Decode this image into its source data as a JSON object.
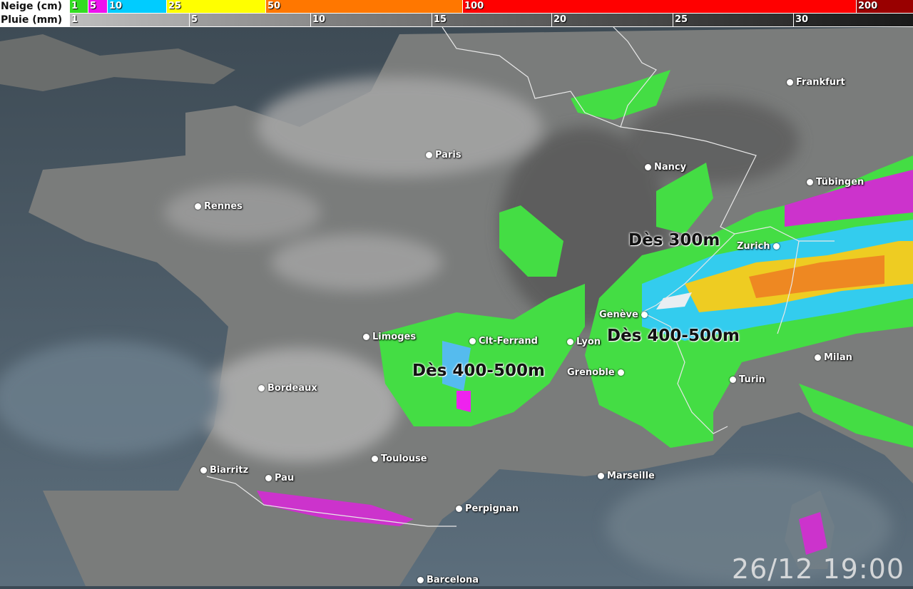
{
  "legend": {
    "snow": {
      "title": "Neige (cm)",
      "steps": [
        {
          "label": "1",
          "color": "#33dd22"
        },
        {
          "label": "5",
          "color": "#ee11ee"
        },
        {
          "label": "10",
          "color": "#00ccff"
        },
        {
          "label": "25",
          "color": "#ffff00"
        },
        {
          "label": "50",
          "color": "#ff7700"
        },
        {
          "label": "100",
          "color": "#ff0000"
        },
        {
          "label": "200",
          "color": "#990000"
        }
      ]
    },
    "rain": {
      "title": "Pluie (mm)",
      "steps": [
        {
          "label": "1",
          "color": "#b8b8b8"
        },
        {
          "label": "5",
          "color": "#9a9a9a"
        },
        {
          "label": "10",
          "color": "#7e7e7e"
        },
        {
          "label": "15",
          "color": "#666666"
        },
        {
          "label": "20",
          "color": "#4e4e4e"
        },
        {
          "label": "25",
          "color": "#383838"
        },
        {
          "label": "30",
          "color": "#222222"
        }
      ]
    }
  },
  "cities": [
    "Frankfurt",
    "Paris",
    "Nancy",
    "Tübingen",
    "Rennes",
    "Zurich",
    "Genève",
    "Limoges",
    "Clt-Ferrand",
    "Lyon",
    "Milan",
    "Grenoble",
    "Turin",
    "Bordeaux",
    "Toulouse",
    "Biarritz",
    "Pau",
    "Marseille",
    "Perpignan",
    "Barcelona"
  ],
  "annotations": [
    "Dès 300m",
    "Dès 400-500m",
    "Dès 400-500m"
  ],
  "timestamp": "26/12 19:00"
}
